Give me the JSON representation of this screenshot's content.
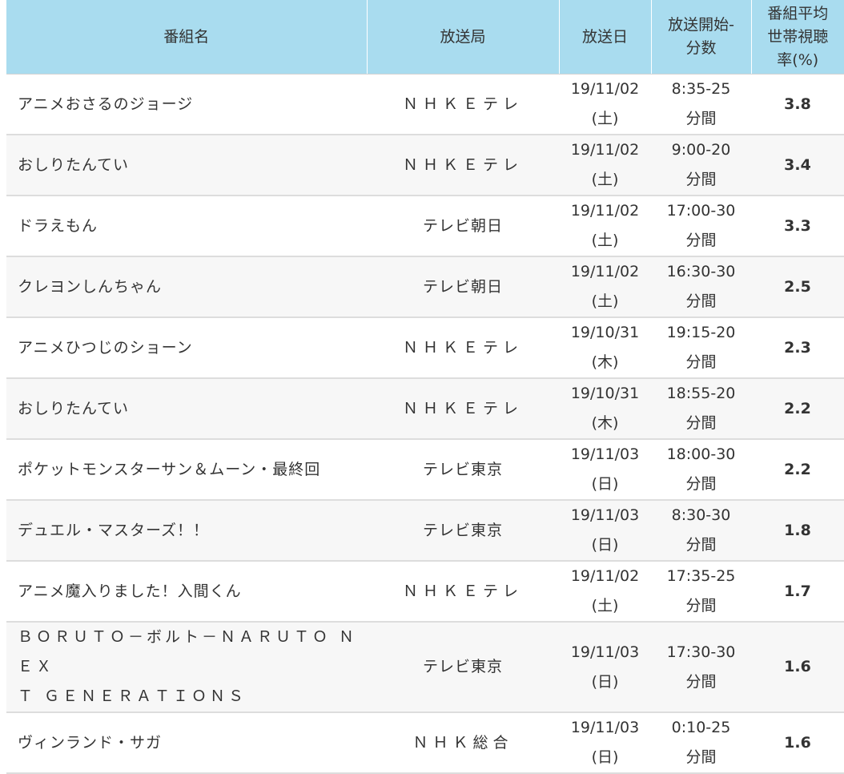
{
  "headers": {
    "title": "番組名",
    "station": "放送局",
    "date": "放送日",
    "time_line1": "放送開始-",
    "time_line2": "分数",
    "rating_line1": "番組平均",
    "rating_line2": "世帯視聴",
    "rating_line3": "率(%)"
  },
  "rows": [
    {
      "title": "アニメおさるのジョージ",
      "station": "ＮＨＫＥテレ",
      "date": "19/11/02",
      "day": "(土)",
      "start": "8:35-25",
      "duration": "分間",
      "rating": "3.8"
    },
    {
      "title": "おしりたんてい",
      "station": "ＮＨＫＥテレ",
      "date": "19/11/02",
      "day": "(土)",
      "start": "9:00-20",
      "duration": "分間",
      "rating": "3.4"
    },
    {
      "title": "ドラえもん",
      "station": "テレビ朝日",
      "date": "19/11/02",
      "day": "(土)",
      "start": "17:00-30",
      "duration": "分間",
      "rating": "3.3"
    },
    {
      "title": "クレヨンしんちゃん",
      "station": "テレビ朝日",
      "date": "19/11/02",
      "day": "(土)",
      "start": "16:30-30",
      "duration": "分間",
      "rating": "2.5"
    },
    {
      "title": "アニメひつじのショーン",
      "station": "ＮＨＫＥテレ",
      "date": "19/10/31",
      "day": "(木)",
      "start": "19:15-20",
      "duration": "分間",
      "rating": "2.3"
    },
    {
      "title": "おしりたんてい",
      "station": "ＮＨＫＥテレ",
      "date": "19/10/31",
      "day": "(木)",
      "start": "18:55-20",
      "duration": "分間",
      "rating": "2.2"
    },
    {
      "title": "ポケットモンスターサン＆ムーン・最終回",
      "station": "テレビ東京",
      "date": "19/11/03",
      "day": "(日)",
      "start": "18:00-30",
      "duration": "分間",
      "rating": "2.2"
    },
    {
      "title": "デュエル・マスターズ！！",
      "station": "テレビ東京",
      "date": "19/11/03",
      "day": "(日)",
      "start": "8:30-30",
      "duration": "分間",
      "rating": "1.8"
    },
    {
      "title": "アニメ魔入りました！入間くん",
      "station": "ＮＨＫＥテレ",
      "date": "19/11/02",
      "day": "(土)",
      "start": "17:35-25",
      "duration": "分間",
      "rating": "1.7"
    },
    {
      "title_line1": "ＢＯＲＵＴＯ－ボルト－ＮＡＲＵＴＯ ＮＥＸ",
      "title_line2": "Ｔ ＧＥＮＥＲＡＴＩＯＮＳ",
      "station": "テレビ東京",
      "date": "19/11/03",
      "day": "(日)",
      "start": "17:30-30",
      "duration": "分間",
      "rating": "1.6"
    },
    {
      "title": "ヴィンランド・サガ",
      "station": "ＮＨＫ総合",
      "date": "19/11/03",
      "day": "(日)",
      "start": "0:10-25",
      "duration": "分間",
      "rating": "1.6"
    }
  ]
}
